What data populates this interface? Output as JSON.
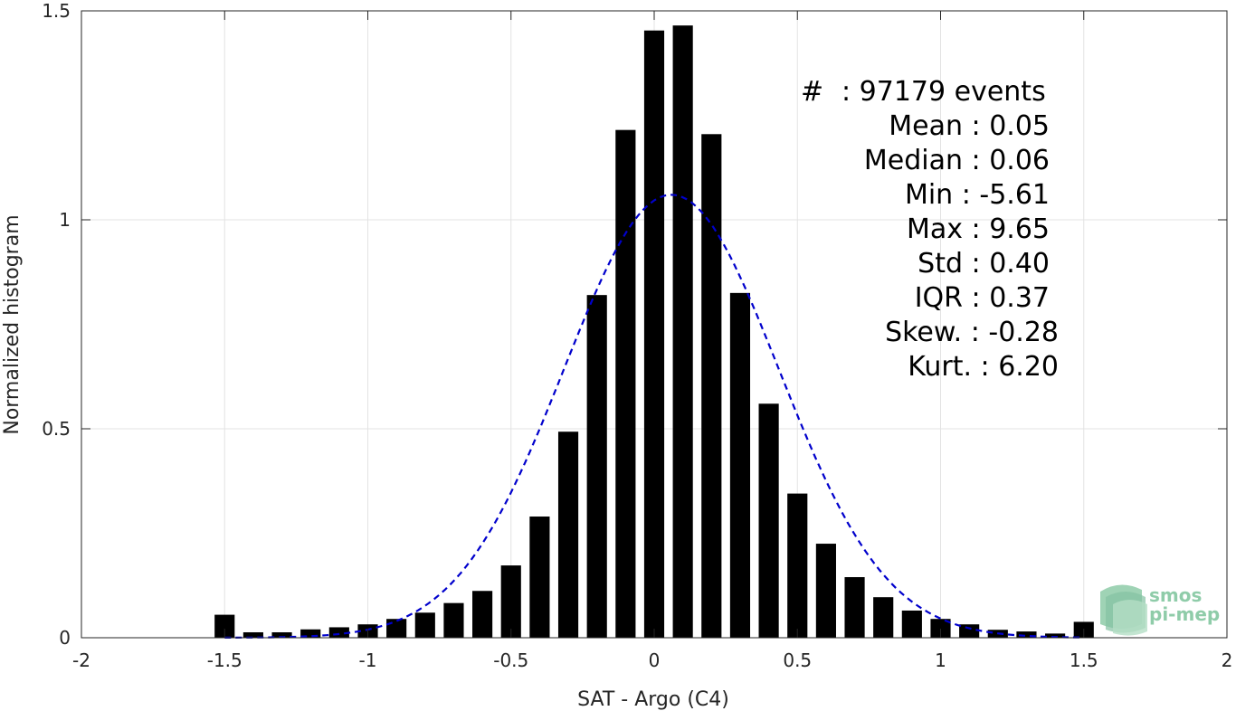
{
  "chart_data": {
    "type": "bar",
    "xlabel": "SAT - Argo (C4)",
    "ylabel": "Normalized histogram",
    "xlim": [
      -2,
      2
    ],
    "ylim": [
      0,
      1.5
    ],
    "xticks": [
      -2,
      -1.5,
      -1,
      -0.5,
      0,
      0.5,
      1,
      1.5,
      2
    ],
    "xtick_labels": [
      "-2",
      "-1.5",
      "-1",
      "-0.5",
      "0",
      "0.5",
      "1",
      "1.5",
      "2"
    ],
    "yticks": [
      0,
      0.5,
      1,
      1.5
    ],
    "ytick_labels": [
      "0",
      "0.5",
      "1",
      "1.5"
    ],
    "grid": true,
    "bar_color": "#000000",
    "bin_width": 0.1,
    "x": [
      -1.5,
      -1.4,
      -1.3,
      -1.2,
      -1.1,
      -1.0,
      -0.9,
      -0.8,
      -0.7,
      -0.6,
      -0.5,
      -0.4,
      -0.3,
      -0.2,
      -0.1,
      0.0,
      0.1,
      0.2,
      0.3,
      0.4,
      0.5,
      0.6,
      0.7,
      0.8,
      0.9,
      1.0,
      1.1,
      1.2,
      1.3,
      1.4,
      1.5
    ],
    "values": [
      0.055,
      0.013,
      0.013,
      0.02,
      0.025,
      0.032,
      0.045,
      0.06,
      0.083,
      0.112,
      0.173,
      0.29,
      0.493,
      0.82,
      1.215,
      1.453,
      1.465,
      1.205,
      0.825,
      0.56,
      0.345,
      0.225,
      0.145,
      0.097,
      0.065,
      0.045,
      0.032,
      0.019,
      0.015,
      0.01,
      0.038
    ],
    "fit_curve": {
      "style": "dashed",
      "color": "#0000cc",
      "distribution": "gaussian",
      "mean": 0.06,
      "std": 0.375,
      "peak": 1.06,
      "x_range": [
        -1.5,
        1.5
      ]
    },
    "stats": {
      "count_label": "#",
      "count_value": "97179 events",
      "mean_label": "Mean",
      "mean_value": "0.05",
      "median_label": "Median",
      "median_value": "0.06",
      "min_label": "Min",
      "min_value": "-5.61",
      "max_label": "Max",
      "max_value": "9.65",
      "std_label": "Std",
      "std_value": "0.40",
      "iqr_label": "IQR",
      "iqr_value": "0.37",
      "skew_label": "Skew.",
      "skew_value": "-0.28",
      "kurt_label": "Kurt.",
      "kurt_value": "6.20"
    }
  },
  "logo": {
    "line1": "smos",
    "line2": "pi-mep",
    "color": "#8fcca9"
  }
}
